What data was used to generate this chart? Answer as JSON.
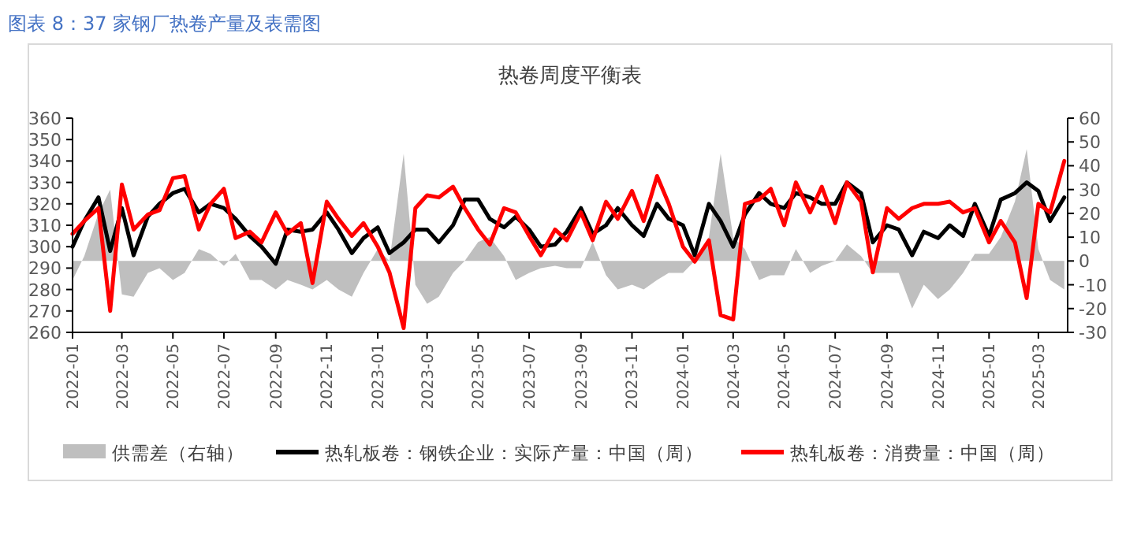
{
  "chart_data": {
    "type": "line",
    "title": "图表 8：37 家钢厂热卷产量及表需图",
    "subtitle": "热卷周度平衡表",
    "x": [
      "2022-01-01",
      "2022-01-15",
      "2022-02-01",
      "2022-02-15",
      "2022-03-01",
      "2022-03-15",
      "2022-04-01",
      "2022-04-15",
      "2022-05-01",
      "2022-05-15",
      "2022-06-01",
      "2022-06-15",
      "2022-07-01",
      "2022-07-15",
      "2022-08-01",
      "2022-08-15",
      "2022-09-01",
      "2022-09-15",
      "2022-10-01",
      "2022-10-15",
      "2022-11-01",
      "2022-11-15",
      "2022-12-01",
      "2022-12-15",
      "2023-01-01",
      "2023-01-15",
      "2023-02-01",
      "2023-02-15",
      "2023-03-01",
      "2023-03-15",
      "2023-04-01",
      "2023-04-15",
      "2023-05-01",
      "2023-05-15",
      "2023-06-01",
      "2023-06-15",
      "2023-07-01",
      "2023-07-15",
      "2023-08-01",
      "2023-08-15",
      "2023-09-01",
      "2023-09-15",
      "2023-10-01",
      "2023-10-15",
      "2023-11-01",
      "2023-11-15",
      "2023-12-01",
      "2023-12-15",
      "2024-01-01",
      "2024-01-15",
      "2024-02-01",
      "2024-02-15",
      "2024-03-01",
      "2024-03-15",
      "2024-04-01",
      "2024-04-15",
      "2024-05-01",
      "2024-05-15",
      "2024-06-01",
      "2024-06-15",
      "2024-07-01",
      "2024-07-15",
      "2024-08-01",
      "2024-08-15",
      "2024-09-01",
      "2024-09-15",
      "2024-10-01",
      "2024-10-15",
      "2024-11-01",
      "2024-11-15",
      "2024-12-01",
      "2024-12-15",
      "2025-01-01",
      "2025-01-15",
      "2025-02-01",
      "2025-02-15",
      "2025-03-01",
      "2025-03-15",
      "2025-04-01"
    ],
    "series": [
      {
        "name": "供需差（右轴）",
        "type": "area",
        "axis": "y2",
        "color": "#bfbfbf",
        "values": [
          -8,
          2,
          20,
          30,
          -14,
          -15,
          -5,
          -3,
          -8,
          -5,
          5,
          3,
          -2,
          3,
          -8,
          -8,
          -12,
          -8,
          -10,
          -12,
          -8,
          -12,
          -15,
          -5,
          5,
          0,
          45,
          -10,
          -18,
          -15,
          -5,
          0,
          8,
          10,
          2,
          -8,
          -5,
          -3,
          -2,
          -3,
          -3,
          8,
          -6,
          -12,
          -10,
          -12,
          -8,
          -5,
          -5,
          0,
          10,
          45,
          10,
          5,
          -8,
          -6,
          -6,
          5,
          -5,
          -2,
          0,
          7,
          2,
          -5,
          -5,
          -5,
          -20,
          -10,
          -16,
          -12,
          -5,
          3,
          3,
          10,
          25,
          47,
          5,
          -8,
          -12
        ]
      },
      {
        "name": "热轧板卷：钢铁企业：实际产量：中国（周）",
        "color": "#000000",
        "values": [
          300,
          312,
          323,
          298,
          318,
          296,
          314,
          320,
          325,
          327,
          316,
          320,
          318,
          313,
          305,
          300,
          292,
          308,
          307,
          308,
          316,
          308,
          297,
          304,
          309,
          297,
          302,
          308,
          308,
          302,
          310,
          322,
          322,
          313,
          309,
          314,
          308,
          300,
          301,
          307,
          318,
          306,
          310,
          318,
          310,
          305,
          320,
          313,
          310,
          296,
          320,
          312,
          300,
          315,
          325,
          320,
          318,
          325,
          323,
          320,
          320,
          330,
          325,
          302,
          310,
          308,
          296,
          307,
          304,
          310,
          305,
          320,
          305,
          322,
          325,
          330,
          326,
          312,
          323
        ]
      },
      {
        "name": "热轧板卷：消费量：中国（周）",
        "color": "#ff0000",
        "values": [
          306,
          312,
          318,
          270,
          329,
          308,
          315,
          317,
          332,
          333,
          308,
          320,
          327,
          304,
          307,
          302,
          316,
          306,
          311,
          283,
          321,
          313,
          305,
          311,
          300,
          288,
          262,
          318,
          324,
          323,
          328,
          318,
          308,
          301,
          318,
          316,
          305,
          296,
          308,
          303,
          316,
          303,
          321,
          313,
          326,
          312,
          333,
          320,
          300,
          293,
          303,
          268,
          266,
          320,
          322,
          327,
          310,
          330,
          316,
          328,
          311,
          330,
          321,
          288,
          318,
          313,
          318,
          320,
          320,
          321,
          316,
          318,
          302,
          312,
          302,
          276,
          320,
          316,
          340
        ]
      }
    ],
    "xlim": [
      "2022-01-01",
      "2025-04-05"
    ],
    "xticks": [
      "2022-01",
      "2022-03",
      "2022-05",
      "2022-07",
      "2022-09",
      "2022-11",
      "2023-01",
      "2023-03",
      "2023-05",
      "2023-07",
      "2023-09",
      "2023-11",
      "2024-01",
      "2024-03",
      "2024-05",
      "2024-07",
      "2024-09",
      "2024-11",
      "2025-01",
      "2025-03"
    ],
    "ylim": [
      260,
      360
    ],
    "yticks": [
      260,
      270,
      280,
      290,
      300,
      310,
      320,
      330,
      340,
      350,
      360
    ],
    "y2lim": [
      -30,
      60
    ],
    "y2ticks": [
      -30,
      -20,
      -10,
      0,
      10,
      20,
      30,
      40,
      50,
      60
    ],
    "grid": false,
    "legend": "bottom",
    "marker": "none",
    "line_style": "solid"
  }
}
